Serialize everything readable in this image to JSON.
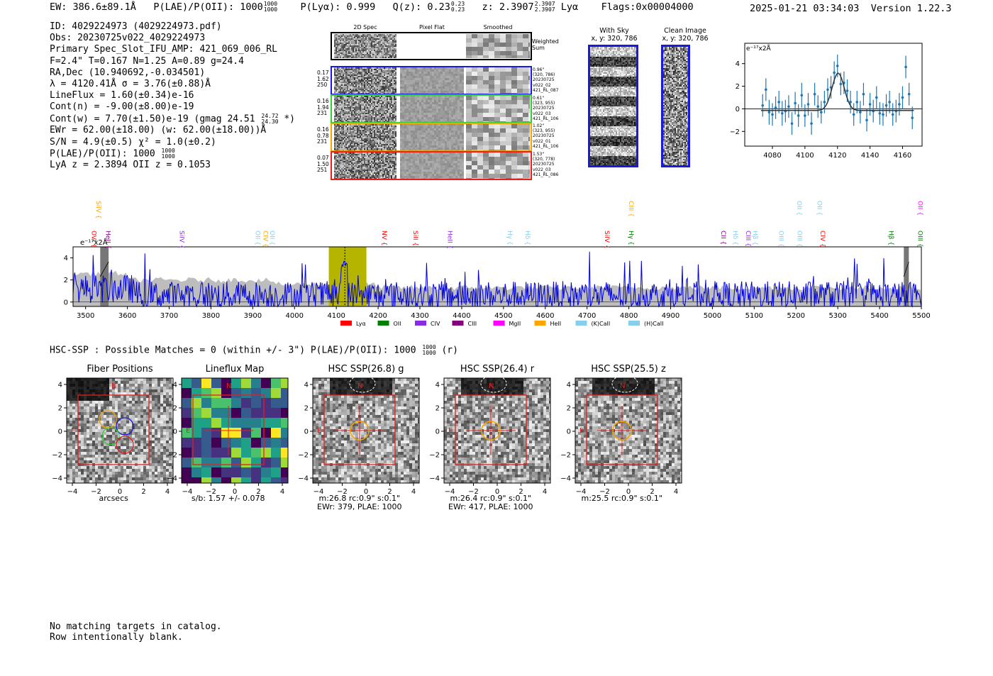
{
  "header": {
    "ew": "EW: 386.6±89.1Å",
    "plae_label": "P(LAE)/P(OII): 1000",
    "plae_hi": "1000",
    "plae_lo": "1000",
    "plya": "P(Lyα): 0.999",
    "qz": "Q(z): 0.23",
    "qz_hi": "0.23",
    "qz_lo": "0.23",
    "z": "z: 2.3907",
    "z_hi": "2.3907",
    "z_lo": "2.3907",
    "z_line": "Lyα",
    "flags": "Flags:0x00004000",
    "datetime": "2025-01-21 03:34:03",
    "version": "Version 1.22.3"
  },
  "info": {
    "id": "ID: 4029224973 (4029224973.pdf)",
    "obs": "Obs: 20230725v022_4029224973",
    "slot": "Primary Spec_Slot_IFU_AMP: 421_069_006_RL",
    "params": "F=2.4\"  T=0.167  N=1.25  A=0.89  g=24.4",
    "radec": "RA,Dec (10.940692,-0.034501)",
    "lambda": "λ = 4120.41Å   σ = 3.76(±0.88)Å",
    "lineflux": "LineFlux = 1.60(±0.34)e-16",
    "contn": "Cont(n) = -9.00(±8.00)e-19",
    "contw": "Cont(w) = 7.70(±1.50)e-19 (gmag 24.51",
    "contw_hi": "24.72",
    "contw_lo": "24.30",
    "contw_end": "*)",
    "ewr": "EWr = 62.00(±18.00) (w: 62.00(±18.00))Å",
    "sn": "S/N = 4.9(±0.5)  χ² = 1.0(±0.2)",
    "plae": "P(LAE)/P(OII): 1000",
    "plae_hi": "1000",
    "plae_lo": "1000",
    "lyaz": "LyA z = 2.3894  OII z = 0.1053"
  },
  "stamps": {
    "col_titles": [
      "2D Spec",
      "Pixel Flat",
      "Smoothed"
    ],
    "weighted": "Weighted\nSum",
    "rows": [
      {
        "left": "0.17\n1.62\n250",
        "right": "0.96\"\n(320, 786)\n20230725\nv022_02\n421_RL_087",
        "color": "#1a1adc"
      },
      {
        "left": "0.16\n1.94\n231",
        "right": "0.61\"\n(323, 955)\n20230725\nv022_03\n421_RL_106",
        "color": "#33cc33"
      },
      {
        "left": "0.16\n0.78\n231",
        "right": "1.02\"\n(323, 955)\n20230725\nv022_01\n421_RL_106",
        "color": "#f5a300"
      },
      {
        "left": "0.07\n1.50\n251",
        "right": "1.53\"\n(320, 778)\n20230725\nv022_03\n421_RL_086",
        "color": "#e62020"
      }
    ]
  },
  "sky": {
    "with_sky_title": "With Sky",
    "with_sky_sub": "x, y: 320, 786",
    "clean_title": "Clean Image",
    "clean_sub": "x, y: 320, 786"
  },
  "zoom_chart": {
    "type": "scatter",
    "scale_label": "e⁻¹⁷x2Å",
    "x_ticks": [
      "4080",
      "4100",
      "4120",
      "4140",
      "4160"
    ],
    "y_ticks": [
      "4",
      "2",
      "0",
      "−2"
    ]
  },
  "main_spec": {
    "scale_label": "e⁻¹⁷x2Å",
    "x_ticks": [
      "3500",
      "3600",
      "3700",
      "3800",
      "3900",
      "4000",
      "4100",
      "4200",
      "4300",
      "4400",
      "4500",
      "4600",
      "4700",
      "4800",
      "4900",
      "5000",
      "5100",
      "5200",
      "5300",
      "5400",
      "5500"
    ],
    "y_ticks": [
      "4",
      "2",
      "0"
    ],
    "legend": [
      {
        "label": "Lyα",
        "color": "#ff0000"
      },
      {
        "label": "OII",
        "color": "#008000"
      },
      {
        "label": "CIV",
        "color": "#8a2be2"
      },
      {
        "label": "CIII",
        "color": "#800080"
      },
      {
        "label": "MgII",
        "color": "#ff00ff"
      },
      {
        "label": "HeII",
        "color": "#ffa500"
      },
      {
        "label": "(K)CaII",
        "color": "#87ceeb"
      },
      {
        "label": "(H)CaII",
        "color": "#87ceeb"
      }
    ],
    "line_labels": [
      {
        "t": "SiIV",
        "c": "#ffa500",
        "x": 3521,
        "row": 0
      },
      {
        "t": "OVI",
        "c": "#ff0000",
        "x": 3510,
        "row": 1
      },
      {
        "t": "HeII",
        "c": "#800080",
        "x": 3544,
        "row": 1
      },
      {
        "t": "SiIV",
        "c": "#8a2be2",
        "x": 3720,
        "row": 1
      },
      {
        "t": "OII",
        "c": "#87ceeb",
        "x": 3902,
        "row": 1
      },
      {
        "t": "CIV",
        "c": "#ffa500",
        "x": 3921,
        "row": 1
      },
      {
        "t": "OII",
        "c": "#87ceeb",
        "x": 3937,
        "row": 1
      },
      {
        "t": "NV",
        "c": "#ff0000",
        "x": 4205,
        "row": 1
      },
      {
        "t": "SiII",
        "c": "#ff0000",
        "x": 4280,
        "row": 1
      },
      {
        "t": "HeII",
        "c": "#8a2be2",
        "x": 4362,
        "row": 1
      },
      {
        "t": "Hγ",
        "c": "#87ceeb",
        "x": 4505,
        "row": 1
      },
      {
        "t": "Hδ",
        "c": "#87ceeb",
        "x": 4548,
        "row": 1
      },
      {
        "t": "SiIV",
        "c": "#ff0000",
        "x": 4738,
        "row": 1
      },
      {
        "t": "CIII",
        "c": "#ffa500",
        "x": 4796,
        "row": 0
      },
      {
        "t": "Hγ",
        "c": "#008000",
        "x": 4796,
        "row": 1
      },
      {
        "t": "CII",
        "c": "#800080",
        "x": 5016,
        "row": 1
      },
      {
        "t": "Hδ",
        "c": "#87ceeb",
        "x": 5045,
        "row": 1
      },
      {
        "t": "CIII",
        "c": "#8a2be2",
        "x": 5076,
        "row": 1
      },
      {
        "t": "Hβ",
        "c": "#87ceeb",
        "x": 5093,
        "row": 1
      },
      {
        "t": "OIII",
        "c": "#87ceeb",
        "x": 5155,
        "row": 1
      },
      {
        "t": "OII",
        "c": "#87ceeb",
        "x": 5198,
        "row": 0
      },
      {
        "t": "OIII",
        "c": "#87ceeb",
        "x": 5199,
        "row": 1
      },
      {
        "t": "OII",
        "c": "#87ceeb",
        "x": 5246,
        "row": 0
      },
      {
        "t": "CIV",
        "c": "#ff0000",
        "x": 5254,
        "row": 1
      },
      {
        "t": "Hβ",
        "c": "#008000",
        "x": 5418,
        "row": 1
      },
      {
        "t": "OII",
        "c": "#ff00ff",
        "x": 5487,
        "row": 0
      },
      {
        "t": "OIII",
        "c": "#008000",
        "x": 5487,
        "row": 1
      }
    ]
  },
  "hsc_line": {
    "text": "HSC-SSP : Possible Matches = 0 (within +/- 3\")  P(LAE)/P(OII): 1000",
    "hi": "1000",
    "lo": "1000",
    "end": "(r)"
  },
  "panels": [
    {
      "title": "Fiber Positions",
      "cap1": "arcsecs",
      "cap2": ""
    },
    {
      "title": "Lineflux Map",
      "cap1": "s/b: 1.57 +/- 0.078",
      "cap2": ""
    },
    {
      "title": "HSC SSP(26.8) g",
      "cap1": "m:26.8 rc:0.9\"  s:0.1\"",
      "cap2": "EWr: 379, PLAE: 1000"
    },
    {
      "title": "HSC SSP(26.4) r",
      "cap1": "m:26.4 rc:0.9\"  s:0.1\"",
      "cap2": "EWr: 417, PLAE: 1000"
    },
    {
      "title": "HSC SSP(25.5) z",
      "cap1": "m:25.5 rc:0.9\"  s:0.1\"",
      "cap2": ""
    }
  ],
  "panel_ticks": {
    "x": [
      "−4",
      "−2",
      "0",
      "2",
      "4"
    ],
    "y": [
      "4",
      "2",
      "0",
      "−2",
      "−4"
    ]
  },
  "compass": {
    "n": "N",
    "e": "E"
  },
  "footer": [
    "No matching targets in catalog.",
    "Row intentionally blank."
  ],
  "chart_data": [
    {
      "type": "line",
      "title": "",
      "xlabel": "",
      "ylabel": "",
      "xlim": [
        3470,
        5500
      ],
      "ylim": [
        -0.4,
        5.0
      ],
      "highlight_window": [
        4082,
        4172
      ],
      "emission_line_x": 4120.41,
      "grey_bands": [
        [
          3535,
          3555
        ],
        [
          5458,
          5470
        ]
      ],
      "series": [
        {
          "name": "flux",
          "color": "#0000dd",
          "x_range": [
            3470,
            5500
          ],
          "note_values": "noisy spectrum around 0-2, peaks up to ~4.5"
        }
      ]
    },
    {
      "type": "scatter",
      "title": "",
      "xlim": [
        4063,
        4172
      ],
      "ylim": [
        -3.3,
        5.8
      ],
      "x": [
        4074,
        4076,
        4078,
        4080,
        4082,
        4084,
        4086,
        4088,
        4090,
        4092,
        4094,
        4096,
        4098,
        4100,
        4102,
        4104,
        4106,
        4108,
        4110,
        4112,
        4114,
        4116,
        4118,
        4120,
        4122,
        4124,
        4126,
        4128,
        4130,
        4132,
        4134,
        4136,
        4138,
        4140,
        4142,
        4144,
        4146,
        4148,
        4150,
        4152,
        4154,
        4156,
        4158,
        4160,
        4162,
        4164,
        4166
      ],
      "y": [
        0.3,
        1.7,
        -0.3,
        -0.5,
        0.1,
        0.6,
        -0.4,
        -0.2,
        0.2,
        -1.3,
        0.5,
        -0.6,
        1.2,
        -0.6,
        0.4,
        -1.3,
        1.3,
        0.2,
        -0.3,
        0.6,
        1.7,
        1.9,
        3.2,
        3.8,
        2.2,
        2.3,
        1.6,
        0.6,
        -0.5,
        0.6,
        -0.3,
        1.3,
        -1.0,
        0.4,
        -0.2,
        1.0,
        -0.4,
        -0.5,
        0.3,
        0.6,
        -0.5,
        -0.2,
        0.4,
        1.0,
        3.7,
        1.3,
        -0.8
      ],
      "err": [
        1.0,
        1.0,
        1.1,
        1.0,
        1.0,
        1.0,
        1.1,
        1.0,
        1.0,
        1.0,
        1.0,
        1.0,
        1.1,
        1.0,
        1.0,
        1.0,
        1.0,
        1.0,
        1.0,
        1.0,
        1.0,
        1.0,
        1.0,
        1.0,
        1.0,
        1.0,
        1.0,
        1.0,
        1.0,
        1.0,
        1.0,
        1.0,
        1.0,
        1.0,
        1.0,
        1.0,
        1.0,
        1.0,
        1.0,
        1.0,
        1.0,
        1.0,
        1.0,
        1.0,
        1.0,
        1.0,
        1.0
      ],
      "fit": {
        "center": 4120.41,
        "amp": 3.3,
        "sigma": 3.76,
        "baseline": -0.15
      }
    }
  ]
}
